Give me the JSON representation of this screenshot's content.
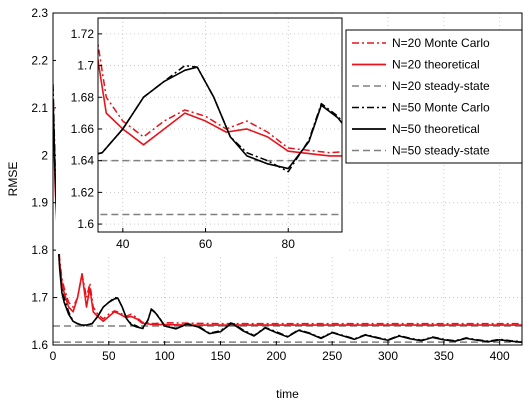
{
  "chart_data": {
    "type": "line",
    "xlabel": "time",
    "ylabel": "RMSE",
    "xlim": [
      0,
      420
    ],
    "ylim": [
      1.6,
      2.3
    ],
    "x_ticks": [
      0,
      50,
      100,
      150,
      200,
      250,
      300,
      350,
      400
    ],
    "y_ticks": [
      1.6,
      1.7,
      1.8,
      1.9,
      2.0,
      2.1,
      2.2,
      2.3
    ],
    "y_tick_labels": [
      "1.6",
      "1.7",
      "1.8",
      "1.9",
      "2",
      "2.1",
      "2.2",
      "2.3"
    ],
    "grid": true,
    "legend_position": "top-right",
    "series": [
      {
        "name": "N=20 Monte Carlo",
        "color": "#e8141b",
        "dash": "dashdot",
        "x": [
          0,
          2,
          4,
          6,
          8,
          10,
          14,
          18,
          22,
          26,
          30,
          33,
          36,
          40,
          45,
          50,
          55,
          60,
          65,
          70,
          75,
          80,
          90,
          100,
          120,
          150,
          200,
          250,
          300,
          350,
          420
        ],
        "y": [
          2.14,
          1.95,
          1.85,
          1.78,
          1.74,
          1.72,
          1.69,
          1.68,
          1.7,
          1.75,
          1.7,
          1.73,
          1.68,
          1.665,
          1.655,
          1.665,
          1.672,
          1.668,
          1.66,
          1.665,
          1.658,
          1.648,
          1.645,
          1.647,
          1.646,
          1.645,
          1.645,
          1.645,
          1.645,
          1.645,
          1.645
        ]
      },
      {
        "name": "N=20 theoretical",
        "color": "#e8141b",
        "dash": "solid",
        "x": [
          0,
          2,
          4,
          6,
          8,
          10,
          14,
          18,
          22,
          26,
          30,
          33,
          36,
          40,
          45,
          50,
          55,
          60,
          65,
          70,
          75,
          80,
          90,
          100,
          120,
          150,
          200,
          250,
          300,
          350,
          420
        ],
        "y": [
          2.1,
          1.93,
          1.83,
          1.77,
          1.73,
          1.71,
          1.68,
          1.67,
          1.7,
          1.75,
          1.68,
          1.72,
          1.67,
          1.66,
          1.65,
          1.66,
          1.67,
          1.665,
          1.658,
          1.66,
          1.655,
          1.646,
          1.643,
          1.643,
          1.642,
          1.642,
          1.642,
          1.642,
          1.642,
          1.642,
          1.642
        ]
      },
      {
        "name": "N=20 steady-state",
        "color": "#808080",
        "dash": "dashed",
        "x": [
          0,
          420
        ],
        "y": [
          1.64,
          1.64
        ]
      },
      {
        "name": "N=50 Monte Carlo",
        "color": "#000000",
        "dash": "dashdot",
        "x": [
          0,
          2,
          4,
          6,
          8,
          10,
          14,
          18,
          22,
          26,
          30,
          35,
          40,
          45,
          50,
          55,
          58,
          62,
          66,
          70,
          75,
          80,
          85,
          88,
          92,
          96,
          100,
          110,
          120,
          130,
          140,
          150,
          160,
          170,
          180,
          190,
          200,
          210,
          220,
          230,
          240,
          250,
          260,
          270,
          280,
          290,
          300,
          310,
          320,
          330,
          340,
          350,
          360,
          370,
          380,
          390,
          400,
          410,
          420
        ],
        "y": [
          2.15,
          1.97,
          1.85,
          1.77,
          1.72,
          1.7,
          1.67,
          1.65,
          1.645,
          1.64,
          1.642,
          1.645,
          1.66,
          1.68,
          1.69,
          1.7,
          1.699,
          1.68,
          1.655,
          1.645,
          1.64,
          1.633,
          1.653,
          1.676,
          1.668,
          1.655,
          1.64,
          1.635,
          1.645,
          1.64,
          1.625,
          1.63,
          1.648,
          1.632,
          1.62,
          1.637,
          1.628,
          1.618,
          1.632,
          1.625,
          1.615,
          1.627,
          1.62,
          1.613,
          1.622,
          1.616,
          1.611,
          1.62,
          1.614,
          1.61,
          1.617,
          1.612,
          1.609,
          1.615,
          1.611,
          1.608,
          1.612,
          1.609,
          1.607
        ]
      },
      {
        "name": "N=50 theoretical",
        "color": "#000000",
        "dash": "solid",
        "x": [
          0,
          2,
          4,
          6,
          8,
          10,
          14,
          18,
          22,
          26,
          30,
          35,
          40,
          45,
          50,
          55,
          58,
          62,
          66,
          70,
          75,
          80,
          85,
          88,
          92,
          96,
          100,
          110,
          120,
          130,
          140,
          150,
          160,
          170,
          180,
          190,
          200,
          210,
          220,
          230,
          240,
          250,
          260,
          270,
          280,
          290,
          300,
          310,
          320,
          330,
          340,
          350,
          360,
          370,
          380,
          390,
          400,
          410,
          420
        ],
        "y": [
          2.12,
          1.95,
          1.84,
          1.76,
          1.71,
          1.69,
          1.665,
          1.65,
          1.645,
          1.642,
          1.642,
          1.645,
          1.66,
          1.68,
          1.69,
          1.697,
          1.699,
          1.68,
          1.655,
          1.643,
          1.638,
          1.635,
          1.652,
          1.675,
          1.667,
          1.654,
          1.64,
          1.634,
          1.644,
          1.638,
          1.624,
          1.628,
          1.646,
          1.63,
          1.619,
          1.636,
          1.626,
          1.617,
          1.631,
          1.624,
          1.614,
          1.626,
          1.619,
          1.612,
          1.621,
          1.615,
          1.61,
          1.619,
          1.613,
          1.609,
          1.616,
          1.611,
          1.608,
          1.614,
          1.61,
          1.607,
          1.611,
          1.608,
          1.606
        ]
      },
      {
        "name": "N=50 steady-state",
        "color": "#808080",
        "dash": "dashed",
        "x": [
          0,
          420
        ],
        "y": [
          1.606,
          1.606
        ]
      }
    ],
    "inset": {
      "xlim": [
        34,
        93
      ],
      "ylim": [
        1.595,
        1.73
      ],
      "x_ticks": [
        40,
        60,
        80
      ],
      "y_ticks": [
        1.6,
        1.62,
        1.64,
        1.66,
        1.68,
        1.7,
        1.72
      ],
      "grid": true
    }
  }
}
